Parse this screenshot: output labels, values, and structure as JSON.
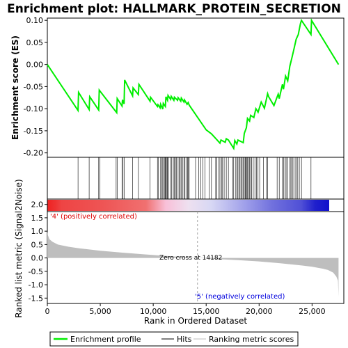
{
  "title": "Enrichment plot: HALLMARK_PROTEIN_SECRETION",
  "colors": {
    "es_line": "#00ee00",
    "hit_line": "#000000",
    "metric_fill": "#bebebe",
    "pos_label": "#dd0000",
    "neg_label": "#0000dd",
    "zero_line": "#a0a0a0"
  },
  "chart_data": [
    {
      "type": "line",
      "panel": "enrichment-score",
      "ylabel": "Enrichment score (ES)",
      "xlim": [
        0,
        28000
      ],
      "ylim": [
        -0.21,
        0.105
      ],
      "yticks": [
        -0.2,
        -0.15,
        -0.1,
        -0.05,
        0.0,
        0.05,
        0.1
      ],
      "ytick_labels": [
        "-0.20",
        "-0.15",
        "-0.10",
        "-0.05",
        "0.00",
        "0.05",
        "0.10"
      ],
      "grid": false,
      "series": [
        {
          "name": "Enrichment profile",
          "x": [
            0,
            2900,
            2950,
            3950,
            4000,
            4850,
            4900,
            6550,
            6600,
            7050,
            7100,
            7250,
            7300,
            8050,
            8100,
            8600,
            8650,
            9700,
            9750,
            10400,
            10450,
            10650,
            10700,
            10900,
            10950,
            11150,
            11200,
            11350,
            11400,
            11650,
            11700,
            11950,
            12000,
            12300,
            12350,
            12600,
            12650,
            12900,
            12950,
            13200,
            13300,
            13400,
            15000,
            15500,
            16000,
            16300,
            16400,
            16800,
            16900,
            17100,
            17600,
            17700,
            17900,
            18000,
            18500,
            18600,
            18800,
            18900,
            19100,
            19200,
            19500,
            19700,
            19900,
            20200,
            20500,
            20800,
            20900,
            21400,
            21800,
            21900,
            22200,
            22300,
            22500,
            22700,
            22900,
            23100,
            23300,
            23500,
            23700,
            23900,
            24000,
            24900,
            24950,
            27500
          ],
          "y": [
            0.0,
            -0.104,
            -0.063,
            -0.102,
            -0.073,
            -0.103,
            -0.058,
            -0.109,
            -0.077,
            -0.094,
            -0.08,
            -0.089,
            -0.035,
            -0.071,
            -0.053,
            -0.068,
            -0.045,
            -0.083,
            -0.074,
            -0.095,
            -0.091,
            -0.098,
            -0.09,
            -0.101,
            -0.088,
            -0.095,
            -0.073,
            -0.081,
            -0.07,
            -0.079,
            -0.072,
            -0.081,
            -0.074,
            -0.081,
            -0.075,
            -0.083,
            -0.076,
            -0.085,
            -0.08,
            -0.09,
            -0.086,
            -0.092,
            -0.148,
            -0.157,
            -0.17,
            -0.178,
            -0.171,
            -0.176,
            -0.168,
            -0.171,
            -0.19,
            -0.172,
            -0.18,
            -0.171,
            -0.177,
            -0.156,
            -0.143,
            -0.122,
            -0.128,
            -0.115,
            -0.12,
            -0.1,
            -0.108,
            -0.085,
            -0.099,
            -0.066,
            -0.073,
            -0.093,
            -0.067,
            -0.077,
            -0.045,
            -0.056,
            -0.026,
            -0.037,
            -0.004,
            0.015,
            0.036,
            0.057,
            0.068,
            0.092,
            0.1,
            0.068,
            0.1,
            0.0
          ]
        }
      ],
      "hits_x": [
        2900,
        3950,
        4850,
        4950,
        6500,
        6600,
        7050,
        7150,
        7250,
        8050,
        8600,
        9700,
        10400,
        10500,
        10700,
        10800,
        10900,
        11000,
        11100,
        11150,
        11200,
        11300,
        11350,
        11450,
        11650,
        11750,
        11900,
        12000,
        12100,
        12200,
        12350,
        12450,
        12550,
        12650,
        12800,
        12900,
        13000,
        13150,
        13250,
        13300,
        13400,
        14000,
        14300,
        14500,
        14700,
        14900,
        15300,
        15500,
        15900,
        16000,
        16200,
        16300,
        16450,
        16550,
        16700,
        16900,
        17100,
        17500,
        17600,
        17800,
        17900,
        18000,
        18100,
        18200,
        18300,
        18400,
        18500,
        18600,
        18700,
        18750,
        18800,
        18900,
        19000,
        19100,
        19200,
        19300,
        19450,
        19600,
        19750,
        19900,
        20050,
        20400,
        20700,
        20800,
        21700,
        21900,
        22200,
        22300,
        22450,
        22550,
        22700,
        22900,
        23000,
        23100,
        23200,
        23400,
        23500,
        23650,
        23800,
        24000,
        24900
      ]
    },
    {
      "type": "area",
      "panel": "ranked-list-metric",
      "ylabel": "Ranked list metric (Signal2Noise)",
      "xlabel": "Rank in Ordered Dataset",
      "xlim": [
        0,
        28000
      ],
      "ylim": [
        -1.7,
        2.2
      ],
      "yticks": [
        -1.5,
        -1.0,
        -0.5,
        0.0,
        0.5,
        1.0,
        1.5,
        2.0
      ],
      "ytick_labels": [
        "-1.5",
        "-1.0",
        "-0.5",
        "0.0",
        "0.5",
        "1.0",
        "1.5",
        "2.0"
      ],
      "xticks": [
        0,
        5000,
        10000,
        15000,
        20000,
        25000
      ],
      "xtick_labels": [
        "0",
        "5,000",
        "10,000",
        "15,000",
        "20,000",
        "25,000"
      ],
      "x": [
        0,
        50,
        200,
        500,
        1000,
        2000,
        3000,
        5000,
        7000,
        9000,
        11000,
        13000,
        14182,
        16000,
        18000,
        20000,
        22000,
        24000,
        25000,
        26000,
        26500,
        27000,
        27300,
        27450,
        27500
      ],
      "values": [
        1.0,
        0.85,
        0.7,
        0.6,
        0.5,
        0.42,
        0.36,
        0.27,
        0.2,
        0.14,
        0.08,
        0.03,
        0.0,
        -0.04,
        -0.08,
        -0.13,
        -0.2,
        -0.28,
        -0.33,
        -0.4,
        -0.45,
        -0.55,
        -0.7,
        -0.85,
        -1.45
      ],
      "annotations": {
        "zero_cross": "Zero cross at 14182",
        "positive": "'4' (positively correlated)",
        "negative": "'5' (negatively correlated)"
      }
    }
  ],
  "legend": {
    "items": [
      {
        "label": "Enrichment profile",
        "color": "#00ee00"
      },
      {
        "label": "Hits",
        "color": "#000000"
      },
      {
        "label": "Ranking metric scores",
        "color": "#bebebe"
      }
    ]
  }
}
